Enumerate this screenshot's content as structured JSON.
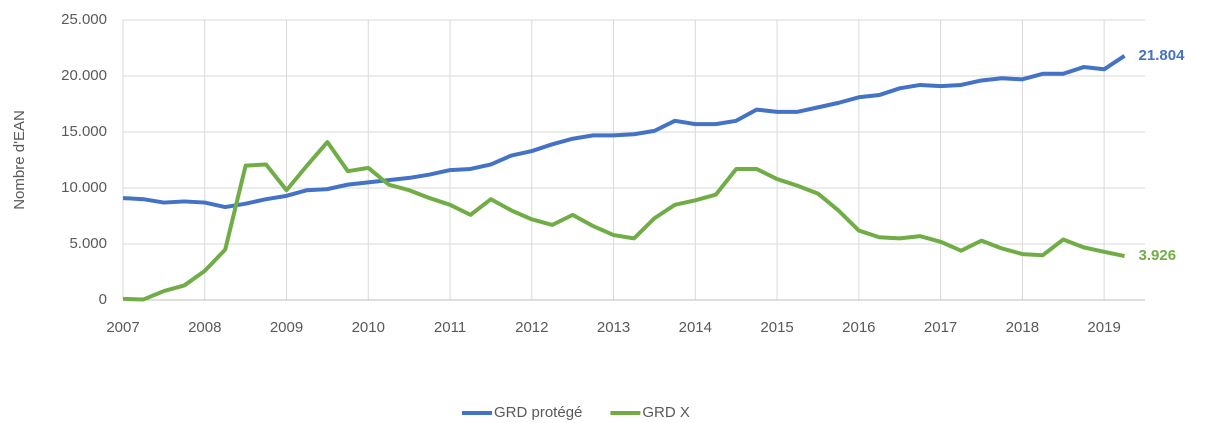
{
  "chart_data": {
    "type": "line",
    "y_label": "Nombre d'EAN",
    "x": [
      2007,
      2007.25,
      2007.5,
      2007.75,
      2008,
      2008.25,
      2008.5,
      2008.75,
      2009,
      2009.25,
      2009.5,
      2009.75,
      2010,
      2010.25,
      2010.5,
      2010.75,
      2011,
      2011.25,
      2011.5,
      2011.75,
      2012,
      2012.25,
      2012.5,
      2012.75,
      2013,
      2013.25,
      2013.5,
      2013.75,
      2014,
      2014.25,
      2014.5,
      2014.75,
      2015,
      2015.25,
      2015.5,
      2015.75,
      2016,
      2016.25,
      2016.5,
      2016.75,
      2017,
      2017.25,
      2017.5,
      2017.75,
      2018,
      2018.25,
      2018.5,
      2018.75,
      2019,
      2019.25
    ],
    "series": [
      {
        "name": "GRD protégé",
        "color": "#4472c4",
        "values": [
          9100,
          9000,
          8700,
          8800,
          8700,
          8300,
          8600,
          9000,
          9300,
          9800,
          9900,
          10300,
          10500,
          10700,
          10900,
          11200,
          11600,
          11700,
          12100,
          12900,
          13300,
          13900,
          14400,
          14700,
          14700,
          14800,
          15100,
          16000,
          15700,
          15700,
          16000,
          17000,
          16800,
          16800,
          17200,
          17600,
          18100,
          18300,
          18900,
          19200,
          19100,
          19200,
          19600,
          19800,
          19700,
          20200,
          20200,
          20800,
          20600,
          21804
        ],
        "value_labels": [
          null,
          null,
          null,
          null,
          null,
          null,
          null,
          null,
          null,
          null,
          null,
          null,
          null,
          null,
          null,
          null,
          null,
          null,
          null,
          null,
          null,
          null,
          null,
          null,
          null,
          null,
          null,
          null,
          null,
          null,
          null,
          null,
          null,
          null,
          null,
          null,
          null,
          null,
          null,
          null,
          null,
          null,
          null,
          null,
          null,
          null,
          null,
          null,
          null,
          "21.804"
        ]
      },
      {
        "name": "GRD X",
        "color": "#70ad47",
        "values": [
          100,
          50,
          800,
          1300,
          2600,
          4500,
          12000,
          12100,
          9800,
          12000,
          14100,
          11500,
          11800,
          10300,
          9800,
          9100,
          8500,
          7600,
          9000,
          8000,
          7200,
          6700,
          7600,
          6600,
          5800,
          5500,
          7300,
          8500,
          8900,
          9400,
          11700,
          11700,
          10800,
          10200,
          9500,
          8000,
          6200,
          5600,
          5500,
          5700,
          5200,
          4400,
          5300,
          4600,
          4100,
          4000,
          5400,
          4700,
          4300,
          3926
        ],
        "value_labels": [
          null,
          null,
          null,
          null,
          null,
          null,
          null,
          null,
          null,
          null,
          null,
          null,
          null,
          null,
          null,
          null,
          null,
          null,
          null,
          null,
          null,
          null,
          null,
          null,
          null,
          null,
          null,
          null,
          null,
          null,
          null,
          null,
          null,
          null,
          null,
          null,
          null,
          null,
          null,
          null,
          null,
          null,
          null,
          null,
          null,
          null,
          null,
          null,
          null,
          "3.926"
        ]
      }
    ],
    "xlim": [
      2007,
      2019.5
    ],
    "xticks": [
      2007,
      2008,
      2009,
      2010,
      2011,
      2012,
      2013,
      2014,
      2015,
      2016,
      2017,
      2018,
      2019
    ],
    "ylim": [
      0,
      25000
    ],
    "yticks": [
      {
        "value": 0,
        "label": "0"
      },
      {
        "value": 5000,
        "label": "5.000"
      },
      {
        "value": 10000,
        "label": "10.000"
      },
      {
        "value": 15000,
        "label": "15.000"
      },
      {
        "value": 20000,
        "label": "20.000"
      },
      {
        "value": 25000,
        "label": "25.000"
      }
    ],
    "grid": true,
    "legend": "bottom"
  }
}
